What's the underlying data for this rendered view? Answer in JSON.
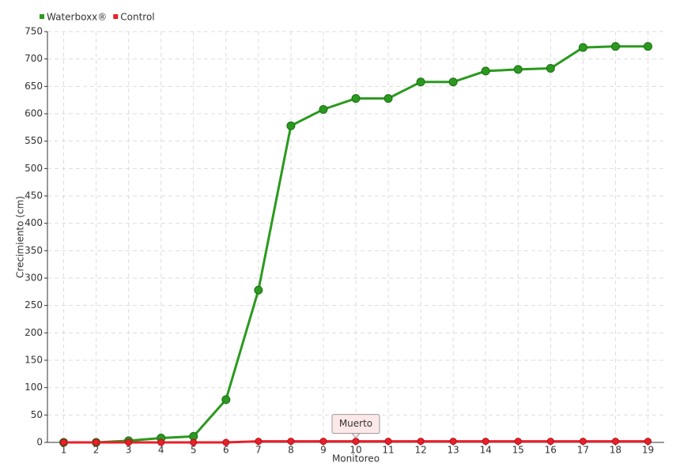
{
  "chart_data": {
    "type": "line",
    "categories": [
      "1",
      "2",
      "3",
      "4",
      "5",
      "6",
      "7",
      "8",
      "9",
      "10",
      "11",
      "12",
      "13",
      "14",
      "15",
      "16",
      "17",
      "18",
      "19"
    ],
    "series": [
      {
        "name": "Waterboxx®",
        "color": "#2a9a1e",
        "values": [
          0,
          0,
          3,
          8,
          11,
          78,
          278,
          578,
          608,
          628,
          628,
          658,
          658,
          678,
          681,
          683,
          721,
          723,
          723
        ]
      },
      {
        "name": "Control",
        "color": "#e8202a",
        "values": [
          0,
          0,
          0,
          0,
          0,
          0,
          2,
          2,
          2,
          2,
          2,
          2,
          2,
          2,
          2,
          2,
          2,
          2,
          2
        ]
      }
    ],
    "ylim": [
      0,
      750
    ],
    "yticks": [
      0,
      50,
      100,
      150,
      200,
      250,
      300,
      350,
      400,
      450,
      500,
      550,
      600,
      650,
      700,
      750
    ],
    "grid": true,
    "x_label": "Monitoreo",
    "y_label": "Crecimiento (cm)",
    "annotations": [
      {
        "text": "Muerto"
      }
    ]
  }
}
